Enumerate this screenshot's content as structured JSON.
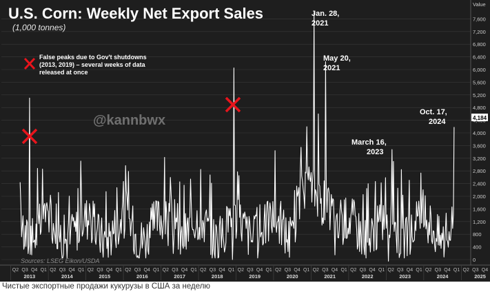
{
  "chart_data": {
    "type": "line",
    "title": "U.S. Corn: Weekly Net Export Sales",
    "subtitle": "(1,000 tonnes)",
    "ylabel": "Value",
    "ylim": [
      -100,
      8000
    ],
    "yticks": [
      0,
      400,
      800,
      1200,
      1600,
      2000,
      2400,
      2800,
      3200,
      3600,
      4000,
      4400,
      4800,
      5200,
      5600,
      6000,
      6400,
      6800,
      7200,
      7600
    ],
    "last_value_label": "4,184",
    "x_range": [
      2012.75,
      2025.25
    ],
    "quarter_labels": [
      "Q2",
      "Q3",
      "Q4",
      "Q1",
      "Q2",
      "Q3",
      "Q4",
      "Q1",
      "Q2",
      "Q3",
      "Q4",
      "Q1",
      "Q2",
      "Q3",
      "Q4",
      "Q1",
      "Q2",
      "Q3",
      "Q4",
      "Q1",
      "Q2",
      "Q3",
      "Q4",
      "Q1",
      "Q2",
      "Q3",
      "Q4",
      "Q1",
      "Q2",
      "Q3",
      "Q4",
      "Q1",
      "Q2",
      "Q3",
      "Q4",
      "Q1",
      "Q2",
      "Q3",
      "Q4",
      "Q1",
      "Q2",
      "Q3",
      "Q4",
      "Q1",
      "Q2",
      "Q3",
      "Q4",
      "Q1",
      "Q2",
      "Q3",
      "Q4",
      "Q1",
      "Q2"
    ],
    "year_labels": [
      "2013",
      "2014",
      "2015",
      "2016",
      "2017",
      "2018",
      "2019",
      "2020",
      "2021",
      "2022",
      "2023",
      "2024",
      "2025"
    ],
    "series": [
      {
        "name": "Weekly Net Export Sales",
        "peaks": [
          {
            "x": 2013.5,
            "y": 5100
          },
          {
            "x": 2018.95,
            "y": 6050
          },
          {
            "x": 2021.07,
            "y": 7800
          },
          {
            "x": 2021.2,
            "y": 4600
          },
          {
            "x": 2021.38,
            "y": 6250
          },
          {
            "x": 2023.2,
            "y": 3100
          },
          {
            "x": 2024.8,
            "y": 4184
          }
        ],
        "lows": [
          {
            "x": 2018.9,
            "y": 0
          },
          {
            "x": 2023.05,
            "y": -50
          },
          {
            "x": 2013.55,
            "y": 150
          }
        ]
      }
    ],
    "annotations": [
      {
        "line1": "Jan. 28,",
        "line2": "2021"
      },
      {
        "line1": "May 20,",
        "line2": "2021"
      },
      {
        "line1": "March 16,",
        "line2": "2023"
      },
      {
        "line1": "Oct. 17,",
        "line2": "2024"
      }
    ],
    "note": {
      "line1": "False peaks due to Gov't shutdowns",
      "line2": "(2013, 2019) – several weeks of data",
      "line3": "released at once"
    },
    "watermark": "@kannbwx",
    "source": "Sources: LSEG Eikon/USDA",
    "colors": {
      "background": "#1e1e1e",
      "line": "#ffffff",
      "grid": "#3a3a3a",
      "marker": "#e8141c"
    }
  },
  "caption": "Чистые экспортные продажи кукурузы в США за неделю"
}
